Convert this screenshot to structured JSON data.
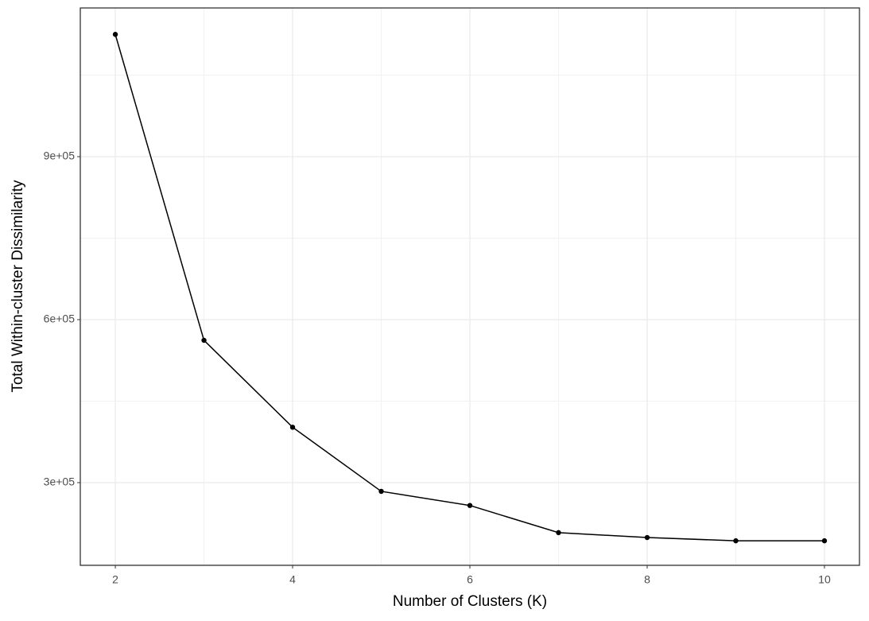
{
  "chart_data": {
    "type": "line",
    "x_label": "Number of Clusters (K)",
    "y_label": "Total Within-cluster Dissimilarity",
    "x": [
      2,
      3,
      4,
      5,
      6,
      7,
      8,
      9,
      10
    ],
    "series": [
      {
        "color": "#000000",
        "values": [
          1125000,
          562000,
          402000,
          284000,
          258000,
          208000,
          199000,
          193000,
          193000
        ]
      }
    ],
    "xlim": [
      1.605,
      10.395
    ],
    "xticks": [
      2,
      4,
      6,
      8,
      10
    ],
    "x_minor_ticks": [
      3,
      5,
      7,
      9
    ],
    "ylim": [
      147805,
      1173659
    ],
    "yticks": [
      {
        "value": 300000,
        "label": "3e+05"
      },
      {
        "value": 600000,
        "label": "6e+05"
      },
      {
        "value": 900000,
        "label": "9e+05"
      }
    ],
    "y_minor_ticks": [
      150000,
      450000,
      750000,
      1050000
    ],
    "grid": true
  }
}
